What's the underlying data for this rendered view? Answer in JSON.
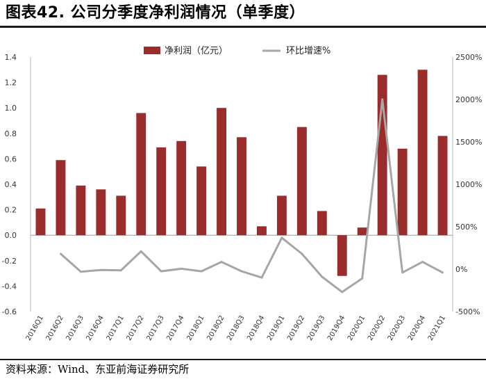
{
  "header": {
    "title": "图表42. 公司分季度净利润情况（单季度）"
  },
  "footer": {
    "source": "资料来源：Wind、东亚前海证券研究所"
  },
  "colors": {
    "bar": "#9b2c2c",
    "line": "#a6a6a6"
  },
  "chart_data": {
    "type": "bar",
    "categories": [
      "2016Q1",
      "2016Q2",
      "2016Q3",
      "2016Q4",
      "2017Q1",
      "2017Q2",
      "2017Q3",
      "2017Q4",
      "2018Q1",
      "2018Q2",
      "2018Q3",
      "2018Q4",
      "2019Q1",
      "2019Q2",
      "2019Q3",
      "2019Q4",
      "2020Q1",
      "2020Q2",
      "2020Q3",
      "2020Q4",
      "2021Q1"
    ],
    "series": [
      {
        "name": "净利润（亿元）",
        "type": "bar",
        "axis": "left",
        "values": [
          0.21,
          0.59,
          0.39,
          0.36,
          0.31,
          0.96,
          0.69,
          0.74,
          0.54,
          1.0,
          0.77,
          0.07,
          0.31,
          0.85,
          0.19,
          -0.32,
          0.06,
          1.26,
          0.68,
          1.3,
          0.78
        ]
      },
      {
        "name": "环比增速%",
        "type": "line",
        "axis": "right",
        "values": [
          null,
          180,
          -30,
          -10,
          -15,
          210,
          -25,
          5,
          -25,
          85,
          -25,
          -100,
          370,
          180,
          -90,
          -270,
          -110,
          2000,
          -40,
          85,
          -40
        ]
      }
    ],
    "left_axis": {
      "min": -0.6,
      "max": 1.4,
      "ticks": [
        "-0.6",
        "-0.4",
        "-0.2",
        "0.0",
        "0.2",
        "0.4",
        "0.6",
        "0.8",
        "1.0",
        "1.2",
        "1.4"
      ]
    },
    "right_axis": {
      "min": -500,
      "max": 2500,
      "ticks": [
        "-500%",
        "0%",
        "500%",
        "1000%",
        "1500%",
        "2000%",
        "2500%"
      ]
    },
    "legend_position": "top-center",
    "grid": false
  }
}
